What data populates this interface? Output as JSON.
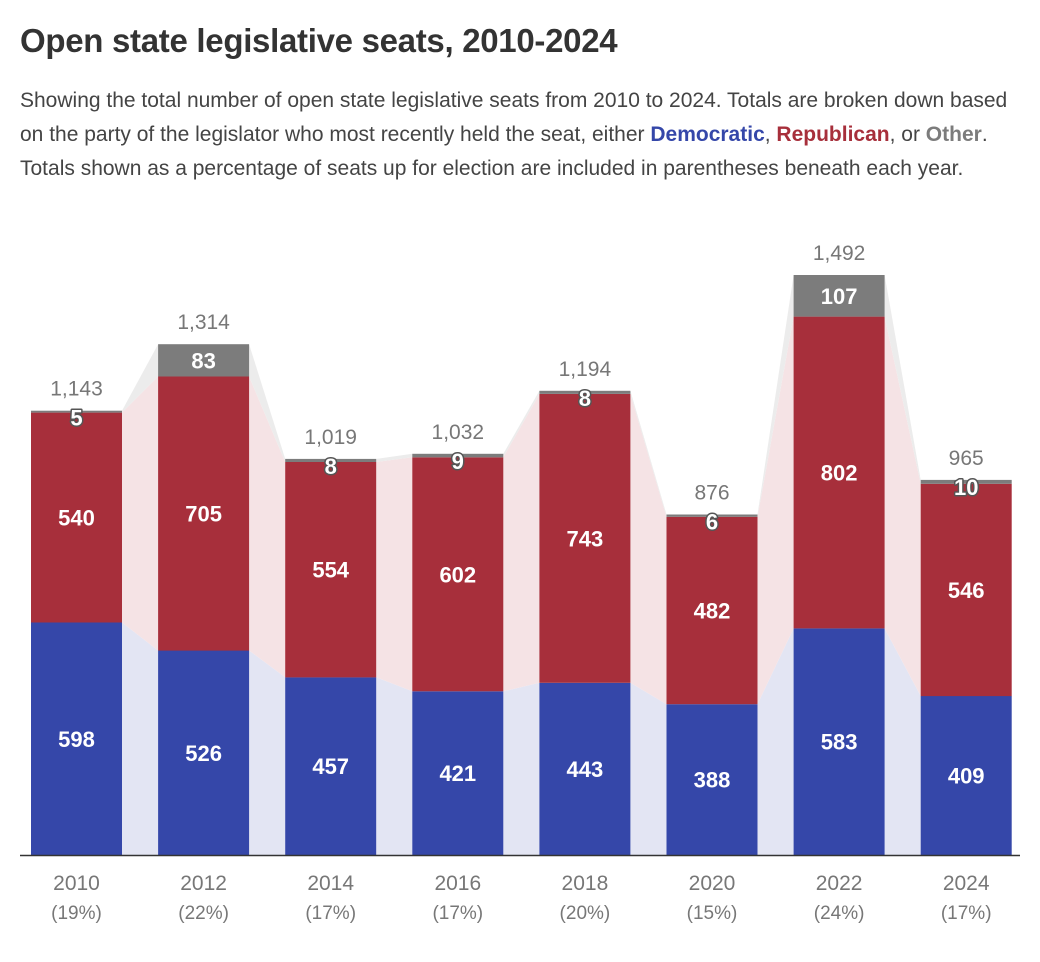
{
  "header": {
    "title": "Open state legislative seats, 2010-2024",
    "desc_part1": "Showing the total number of open state legislative seats from 2010 to 2024. Totals are broken down based on the party of the legislator who most recently held the seat, either ",
    "desc_dem": "Democratic",
    "desc_part2": ", ",
    "desc_rep": "Republican",
    "desc_part3": ", or ",
    "desc_oth": "Other",
    "desc_part4": ". Totals shown as a percentage of seats up for election are included in parentheses beneath each year."
  },
  "colors": {
    "democratic": "#3547a9",
    "republican": "#a72f3b",
    "other": "#7c7c7c",
    "dem_connector": "#e3e5f3",
    "rep_connector": "#f5e3e5",
    "oth_connector": "#ececec",
    "axis": "#333333"
  },
  "chart_data": {
    "type": "bar",
    "stacked": true,
    "categories": [
      "2010",
      "2012",
      "2014",
      "2016",
      "2018",
      "2020",
      "2022",
      "2024"
    ],
    "category_sublabels": [
      "(19%)",
      "(22%)",
      "(17%)",
      "(17%)",
      "(20%)",
      "(15%)",
      "(24%)",
      "(17%)"
    ],
    "series": [
      {
        "name": "Democratic",
        "values": [
          598,
          526,
          457,
          421,
          443,
          388,
          583,
          409
        ]
      },
      {
        "name": "Republican",
        "values": [
          540,
          705,
          554,
          602,
          743,
          482,
          802,
          546
        ]
      },
      {
        "name": "Other",
        "values": [
          5,
          83,
          8,
          9,
          8,
          6,
          107,
          10
        ]
      }
    ],
    "totals": [
      1143,
      1314,
      1019,
      1032,
      1194,
      876,
      1492,
      965
    ],
    "total_labels": [
      "1,143",
      "1,314",
      "1,019",
      "1,032",
      "1,194",
      "876",
      "1,492",
      "965"
    ],
    "ylim": [
      0,
      1492
    ],
    "grid": false
  }
}
